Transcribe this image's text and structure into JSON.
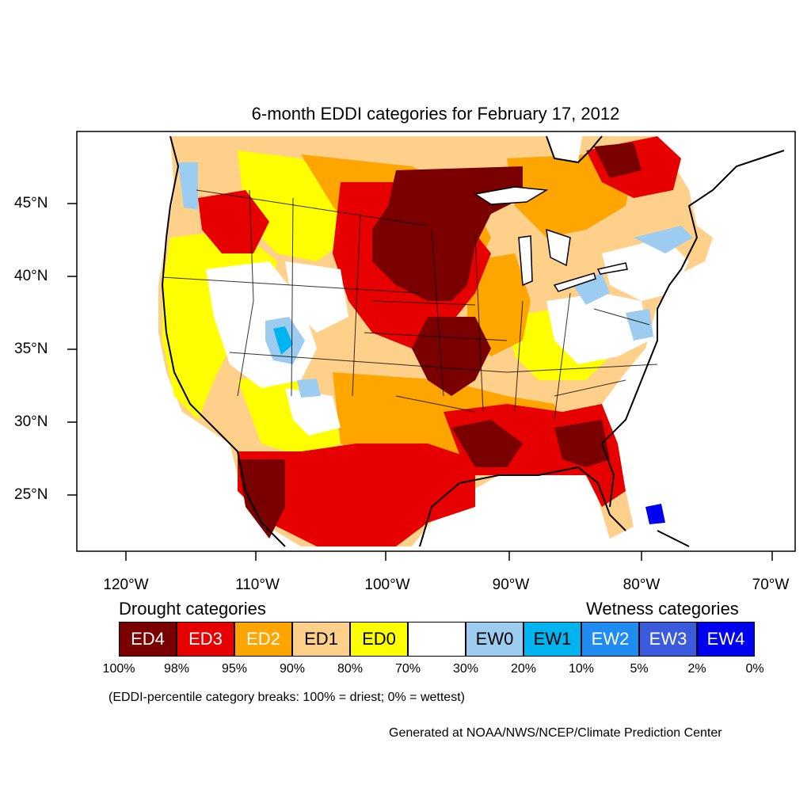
{
  "title": "6-month EDDI categories for February 17, 2012",
  "lat_labels": [
    "45°N",
    "40°N",
    "35°N",
    "30°N",
    "25°N"
  ],
  "lon_labels": [
    "120°W",
    "110°W",
    "100°W",
    "90°W",
    "80°W",
    "70°W"
  ],
  "legend": {
    "drought_heading": "Drought categories",
    "wetness_heading": "Wetness categories",
    "categories": [
      {
        "label": "ED4",
        "color": "#7a0000",
        "text_color": "#ffffff"
      },
      {
        "label": "ED3",
        "color": "#e60000",
        "text_color": "#ffffff"
      },
      {
        "label": "ED2",
        "color": "#ffa500",
        "text_color": "#ffffff"
      },
      {
        "label": "ED1",
        "color": "#ffd08a",
        "text_color": "#000000"
      },
      {
        "label": "ED0",
        "color": "#ffff00",
        "text_color": "#000000"
      },
      {
        "label": "",
        "color": "#ffffff",
        "text_color": "#000000"
      },
      {
        "label": "EW0",
        "color": "#9ccdf0",
        "text_color": "#000000"
      },
      {
        "label": "EW1",
        "color": "#00b4f0",
        "text_color": "#000000"
      },
      {
        "label": "EW2",
        "color": "#1e8cf0",
        "text_color": "#ffffff"
      },
      {
        "label": "EW3",
        "color": "#3c5adc",
        "text_color": "#ffffff"
      },
      {
        "label": "EW4",
        "color": "#0000f0",
        "text_color": "#ffffff"
      }
    ],
    "percentiles": [
      "100%",
      "98%",
      "95%",
      "90%",
      "80%",
      "70%",
      "30%",
      "20%",
      "10%",
      "5%",
      "2%",
      "0%"
    ]
  },
  "note": "(EDDI-percentile category breaks: 100% = driest; 0% = wettest)",
  "credit": "Generated at NOAA/NWS/NCEP/Climate Prediction Center"
}
